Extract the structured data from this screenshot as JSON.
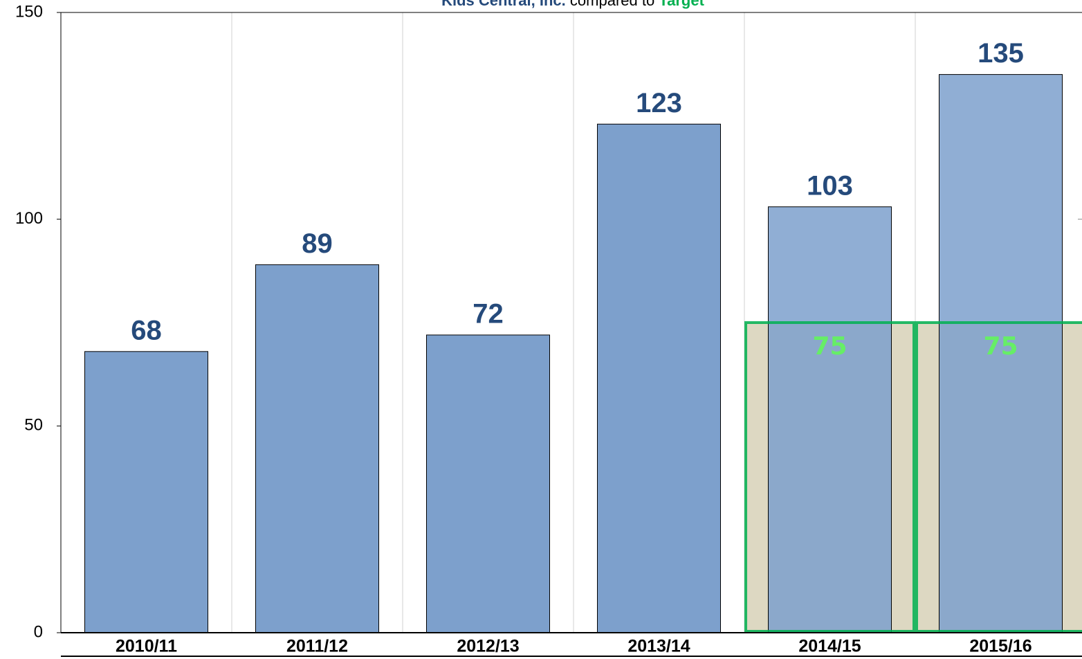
{
  "chart_data": {
    "type": "bar",
    "title_org": "Kids Central, Inc.",
    "title_mid": "compared to",
    "title_target": "Target",
    "categories": [
      "2010/11",
      "2011/12",
      "2012/13",
      "2013/14",
      "2014/15",
      "2015/16"
    ],
    "series": [
      {
        "name": "Kids Central, Inc.",
        "color": "#7da0cc",
        "values": [
          68,
          89,
          72,
          123,
          103,
          135
        ]
      },
      {
        "name": "Target",
        "color": "#00b050",
        "values": [
          null,
          null,
          null,
          null,
          75,
          75
        ]
      }
    ],
    "ylim": [
      0,
      150
    ],
    "yticks": [
      0,
      50,
      100,
      150
    ],
    "grid": true
  }
}
